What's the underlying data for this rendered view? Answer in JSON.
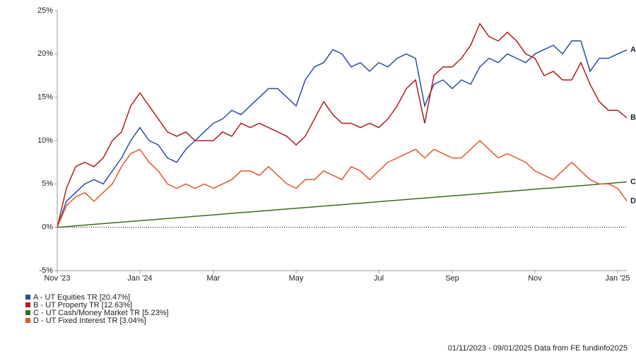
{
  "chart_data": {
    "type": "line",
    "categories": [
      "Nov '23",
      null,
      null,
      null,
      null,
      null,
      null,
      null,
      null,
      "Jan '24",
      null,
      null,
      null,
      null,
      null,
      null,
      null,
      "Mar",
      null,
      null,
      null,
      null,
      null,
      null,
      null,
      null,
      "May",
      null,
      null,
      null,
      null,
      null,
      null,
      null,
      null,
      "Jul",
      null,
      null,
      null,
      null,
      null,
      null,
      null,
      "Sep",
      null,
      null,
      null,
      null,
      null,
      null,
      null,
      null,
      "Nov",
      null,
      null,
      null,
      null,
      null,
      null,
      null,
      null,
      "Jan '25",
      null
    ],
    "series": [
      {
        "name": "A - UT Equities TR [20.47%]",
        "label": "A",
        "color": "#2a4d9b",
        "values": [
          0,
          3,
          4,
          5,
          5.5,
          5,
          6.5,
          8,
          10,
          11.5,
          10,
          9.5,
          8,
          7.5,
          9,
          10,
          11,
          12,
          12.5,
          13.5,
          13,
          14,
          15,
          16,
          16,
          15,
          14,
          17,
          18.5,
          19,
          20.5,
          20,
          18.5,
          19,
          18,
          19,
          18.5,
          19.5,
          20,
          19.5,
          14,
          16.5,
          17,
          16,
          17,
          16.5,
          18.5,
          19.5,
          19,
          20,
          19.5,
          19,
          20,
          20.5,
          21,
          20,
          21.5,
          21.5,
          18,
          19.5,
          19.5,
          20,
          20.47
        ]
      },
      {
        "name": "B - UT Property TR [12.63%]",
        "label": "B",
        "color": "#b01c1c",
        "values": [
          0,
          4.5,
          7,
          7.5,
          7,
          8,
          10,
          11,
          14,
          15.5,
          14,
          12.5,
          11,
          10.5,
          11,
          10,
          10,
          10,
          11,
          10.5,
          12,
          11.5,
          12,
          11.5,
          11,
          10.5,
          9.5,
          10.5,
          12.5,
          14.5,
          13,
          12,
          12,
          11.5,
          12,
          11.5,
          12.5,
          14,
          16,
          17,
          12,
          17.5,
          18.5,
          18.5,
          19.5,
          21,
          23.5,
          22,
          21.5,
          22.5,
          21.5,
          20,
          19.5,
          17.5,
          18,
          17,
          17,
          19,
          16.5,
          14.5,
          13.5,
          13.5,
          12.63
        ]
      },
      {
        "name": "C - UT Cash/Money Market TR [5.23%]",
        "label": "C",
        "color": "#3a6e16",
        "values": [
          0,
          0.08,
          0.17,
          0.25,
          0.34,
          0.42,
          0.51,
          0.59,
          0.67,
          0.76,
          0.84,
          0.93,
          1.01,
          1.1,
          1.18,
          1.27,
          1.35,
          1.43,
          1.52,
          1.6,
          1.69,
          1.77,
          1.86,
          1.94,
          2.02,
          2.11,
          2.19,
          2.28,
          2.36,
          2.45,
          2.53,
          2.61,
          2.7,
          2.78,
          2.87,
          2.95,
          3.04,
          3.12,
          3.2,
          3.29,
          3.37,
          3.46,
          3.54,
          3.63,
          3.71,
          3.79,
          3.88,
          3.96,
          4.05,
          4.13,
          4.22,
          4.3,
          4.39,
          4.47,
          4.55,
          4.64,
          4.72,
          4.81,
          4.89,
          4.98,
          5.06,
          5.15,
          5.23
        ]
      },
      {
        "name": "D - UT Fixed Interest TR [3.04%]",
        "label": "D",
        "color": "#e0582a",
        "values": [
          0,
          2.5,
          3.5,
          4,
          3,
          4,
          5,
          7,
          8.5,
          9,
          7.5,
          6.5,
          5,
          4.5,
          5,
          4.5,
          5,
          4.5,
          5,
          5.5,
          6.5,
          6.5,
          6,
          7,
          6,
          5,
          4.5,
          5.5,
          5.5,
          6.5,
          6,
          5.5,
          7,
          6.5,
          5.5,
          6.5,
          7.5,
          8,
          8.5,
          9,
          8,
          9,
          8.5,
          8,
          8,
          9,
          10,
          9,
          8,
          8.5,
          8,
          7.5,
          6.5,
          6,
          5.5,
          6.5,
          7.5,
          6.5,
          5.5,
          5,
          5,
          4.5,
          3.04
        ]
      }
    ],
    "ylim": [
      -5,
      25
    ],
    "yticks": [
      {
        "value": -5,
        "label": "-5%"
      },
      {
        "value": 0,
        "label": "0%"
      },
      {
        "value": 5,
        "label": "5%"
      },
      {
        "value": 10,
        "label": "10%"
      },
      {
        "value": 15,
        "label": "15%"
      },
      {
        "value": 20,
        "label": "20%"
      },
      {
        "value": 25,
        "label": "25%"
      }
    ],
    "footer": "01/11/2023 - 09/01/2025 Data from FE fundinfo2025"
  }
}
